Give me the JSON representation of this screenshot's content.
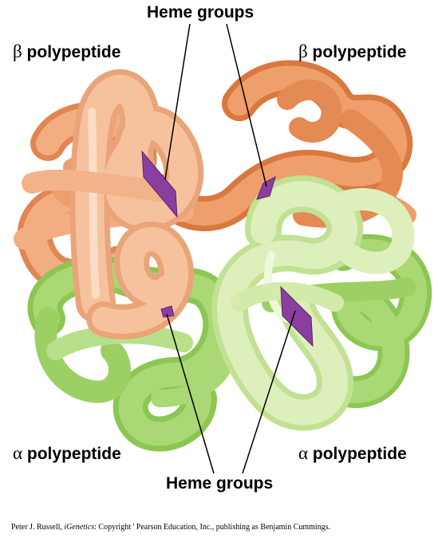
{
  "labels": {
    "heme_top": "Heme groups",
    "heme_bottom": "Heme groups",
    "beta_left_symbol": "β",
    "beta_left_text": "polypeptide",
    "beta_right_symbol": "β",
    "beta_right_text": "polypeptide",
    "alpha_left_symbol": "α",
    "alpha_left_text": "polypeptide",
    "alpha_right_symbol": "α",
    "alpha_right_text": "polypeptide"
  },
  "credit": {
    "prefix": "Peter J. Russell, ",
    "title": "iGenetics",
    "suffix": ": Copyright ' Pearson Education, Inc., publishing as Benjamin Cummings."
  },
  "colors": {
    "beta_back": "#ec9a68",
    "beta_front": "#f6bf99",
    "alpha_back": "#a3d86e",
    "alpha_front": "#dbefb6",
    "heme": "#8a3fa0",
    "leader": "#000000"
  }
}
